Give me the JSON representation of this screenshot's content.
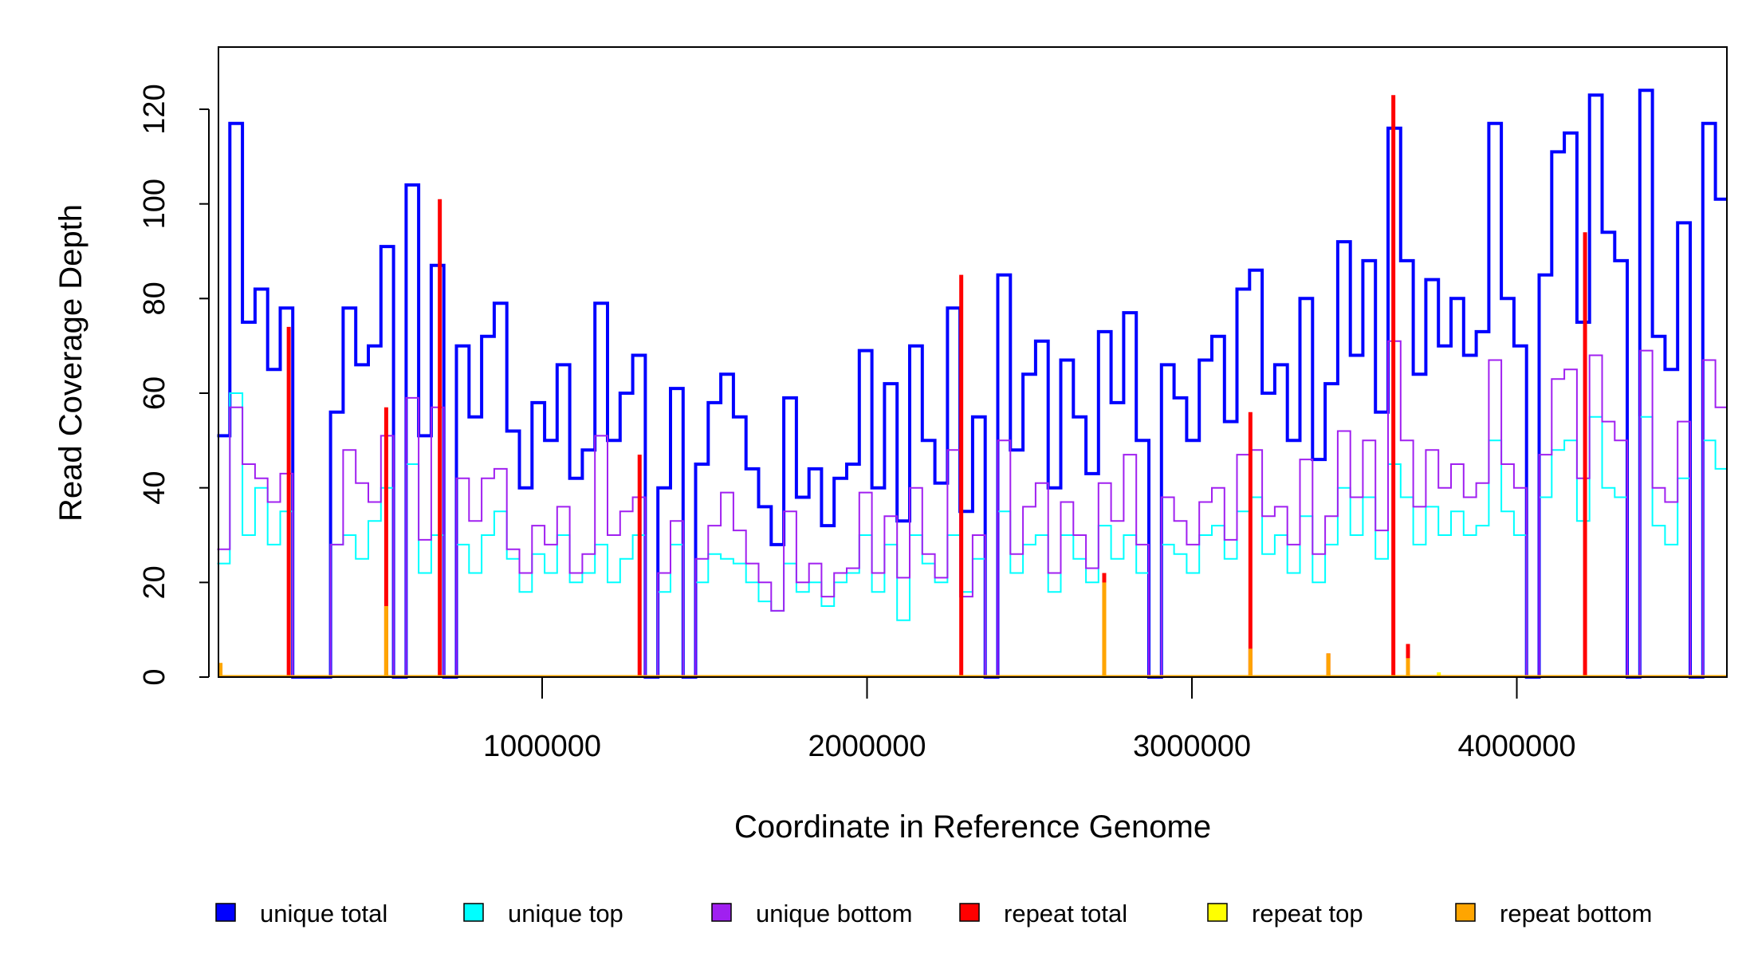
{
  "chart_data": {
    "type": "line",
    "title": "",
    "xlabel": "Coordinate in Reference Genome",
    "ylabel": "Read Coverage Depth",
    "xlim": [
      0,
      4650000
    ],
    "ylim": [
      0,
      133
    ],
    "x_ticks": [
      1000000,
      2000000,
      3000000,
      4000000
    ],
    "x_tick_labels": [
      "1000000",
      "2000000",
      "3000000",
      "4000000"
    ],
    "y_ticks": [
      0,
      20,
      40,
      60,
      80,
      100,
      120
    ],
    "y_tick_labels": [
      "0",
      "20",
      "40",
      "60",
      "80",
      "100",
      "120"
    ],
    "grid": false,
    "legend_placement": "bottom",
    "bin_width": 38750,
    "series": [
      {
        "name": "unique total",
        "color": "#0000FF",
        "values": [
          51,
          117,
          75,
          82,
          65,
          78,
          0,
          0,
          0,
          56,
          78,
          66,
          70,
          91,
          0,
          104,
          51,
          87,
          0,
          70,
          55,
          72,
          79,
          52,
          40,
          58,
          50,
          66,
          42,
          48,
          79,
          50,
          60,
          68,
          0,
          40,
          61,
          0,
          45,
          58,
          64,
          55,
          44,
          36,
          28,
          59,
          38,
          44,
          32,
          42,
          45,
          69,
          40,
          62,
          33,
          70,
          50,
          41,
          78,
          35,
          55,
          0,
          85,
          48,
          64,
          71,
          40,
          67,
          55,
          43,
          73,
          58,
          77,
          50,
          0,
          66,
          59,
          50,
          67,
          72,
          54,
          82,
          86,
          60,
          66,
          50,
          80,
          46,
          62,
          92,
          68,
          88,
          56,
          116,
          88,
          64,
          84,
          70,
          80,
          68,
          73,
          117,
          80,
          70,
          0,
          85,
          111,
          115,
          75,
          123,
          94,
          88,
          0,
          124,
          72,
          65,
          96,
          0,
          117,
          101
        ]
      },
      {
        "name": "unique top",
        "color": "#00FFFF",
        "values": [
          24,
          60,
          30,
          40,
          28,
          35,
          0,
          0,
          0,
          28,
          30,
          25,
          33,
          40,
          0,
          45,
          22,
          30,
          0,
          28,
          22,
          30,
          35,
          25,
          18,
          26,
          22,
          30,
          20,
          22,
          28,
          20,
          25,
          30,
          0,
          18,
          28,
          0,
          20,
          26,
          25,
          24,
          20,
          16,
          14,
          24,
          18,
          20,
          15,
          20,
          22,
          30,
          18,
          28,
          12,
          30,
          24,
          20,
          30,
          18,
          25,
          0,
          35,
          22,
          28,
          30,
          18,
          30,
          25,
          20,
          32,
          25,
          30,
          22,
          0,
          28,
          26,
          22,
          30,
          32,
          25,
          35,
          38,
          26,
          30,
          22,
          34,
          20,
          28,
          40,
          30,
          38,
          25,
          45,
          38,
          28,
          36,
          30,
          35,
          30,
          32,
          50,
          35,
          30,
          0,
          38,
          48,
          50,
          33,
          55,
          40,
          38,
          0,
          55,
          32,
          28,
          42,
          0,
          50,
          44
        ]
      },
      {
        "name": "unique bottom",
        "color": "#A020F0",
        "values": [
          27,
          57,
          45,
          42,
          37,
          43,
          0,
          0,
          0,
          28,
          48,
          41,
          37,
          51,
          0,
          59,
          29,
          57,
          0,
          42,
          33,
          42,
          44,
          27,
          22,
          32,
          28,
          36,
          22,
          26,
          51,
          30,
          35,
          38,
          0,
          22,
          33,
          0,
          25,
          32,
          39,
          31,
          24,
          20,
          14,
          35,
          20,
          24,
          17,
          22,
          23,
          39,
          22,
          34,
          21,
          40,
          26,
          21,
          48,
          17,
          30,
          0,
          50,
          26,
          36,
          41,
          22,
          37,
          30,
          23,
          41,
          33,
          47,
          28,
          0,
          38,
          33,
          28,
          37,
          40,
          29,
          47,
          48,
          34,
          36,
          28,
          46,
          26,
          34,
          52,
          38,
          50,
          31,
          71,
          50,
          36,
          48,
          40,
          45,
          38,
          41,
          67,
          45,
          40,
          0,
          47,
          63,
          65,
          42,
          68,
          54,
          50,
          0,
          69,
          40,
          37,
          54,
          0,
          67,
          57
        ]
      },
      {
        "name": "repeat total",
        "color": "#FF0000",
        "points": [
          {
            "x": 220000,
            "y": 74
          },
          {
            "x": 520000,
            "y": 57
          },
          {
            "x": 685000,
            "y": 101
          },
          {
            "x": 1300000,
            "y": 47
          },
          {
            "x": 2290000,
            "y": 85
          },
          {
            "x": 2730000,
            "y": 22
          },
          {
            "x": 3180000,
            "y": 56
          },
          {
            "x": 3420000,
            "y": 5
          },
          {
            "x": 3620000,
            "y": 123
          },
          {
            "x": 3665000,
            "y": 7
          },
          {
            "x": 4210000,
            "y": 94
          }
        ]
      },
      {
        "name": "repeat top",
        "color": "#FFFF00",
        "points": [
          {
            "x": 3760000,
            "y": 1
          }
        ]
      },
      {
        "name": "repeat bottom",
        "color": "#FFA500",
        "points": [
          {
            "x": 10000,
            "y": 3
          },
          {
            "x": 520000,
            "y": 15
          },
          {
            "x": 2730000,
            "y": 20
          },
          {
            "x": 3180000,
            "y": 6
          },
          {
            "x": 3420000,
            "y": 5
          },
          {
            "x": 3665000,
            "y": 4
          }
        ]
      }
    ],
    "legend": [
      {
        "label": "unique total",
        "color": "#0000FF"
      },
      {
        "label": "unique top",
        "color": "#00FFFF"
      },
      {
        "label": "unique bottom",
        "color": "#A020F0"
      },
      {
        "label": "repeat total",
        "color": "#FF0000"
      },
      {
        "label": "repeat top",
        "color": "#FFFF00"
      },
      {
        "label": "repeat bottom",
        "color": "#FFA500"
      }
    ]
  }
}
